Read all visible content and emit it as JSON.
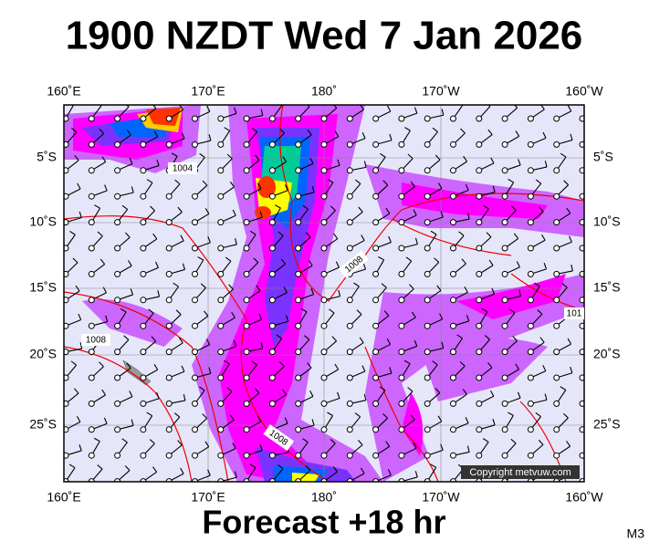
{
  "header": {
    "title": "1900 NZDT Wed 7 Jan 2026"
  },
  "map": {
    "top_labels": [
      "160˚E",
      "170˚E",
      "180˚",
      "170˚W",
      "160˚W"
    ],
    "bottom_labels": [
      "160˚E",
      "170˚E",
      "180˚",
      "170˚W",
      "160˚W"
    ],
    "left_labels": [
      "5˚S",
      "10˚S",
      "15˚S",
      "20˚S",
      "25˚S"
    ],
    "right_labels": [
      "5˚S",
      "10˚S",
      "15˚S",
      "20˚S",
      "25˚S"
    ],
    "contour_labels": [
      "1004",
      "1008",
      "1008",
      "1008",
      "101"
    ],
    "copyright": "Copyright metvuw.com"
  },
  "footer": {
    "caption": "Forecast +18 hr",
    "code": "M3"
  }
}
